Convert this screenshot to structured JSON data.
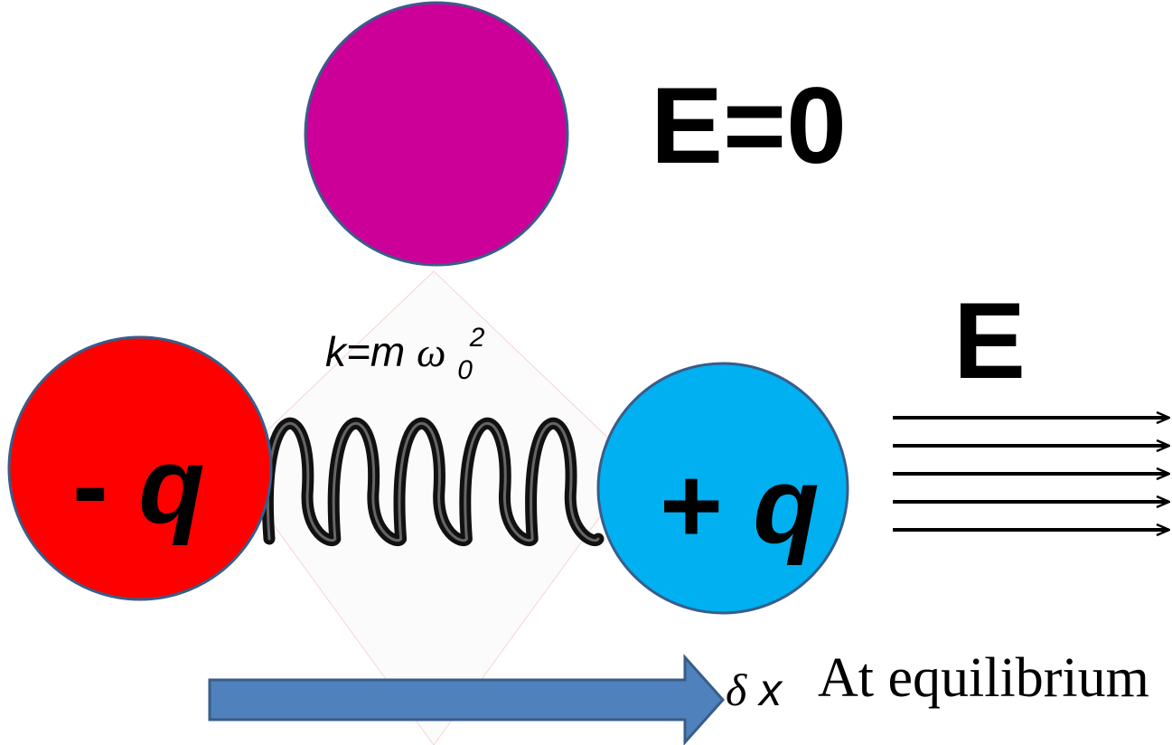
{
  "neutral_atom": {
    "field_label": "E=0",
    "color": "#CC0099"
  },
  "displaced_atom": {
    "spring_label_prefix": "k=m",
    "spring_label_omega": "ω",
    "spring_label_sub": "0",
    "spring_label_sup": "2",
    "negative_charge": {
      "sign": "-",
      "symbol": "q",
      "color": "#FF0000"
    },
    "positive_charge": {
      "sign": "+",
      "symbol": "q",
      "color": "#00B0F0"
    },
    "field_label": "E",
    "field_line_count": 5
  },
  "displacement": {
    "symbol_delta": "δ",
    "symbol_x": "x",
    "arrow_color": "#4F81BD"
  },
  "state_label": "At equilibrium",
  "outline_color": "#385D8A"
}
